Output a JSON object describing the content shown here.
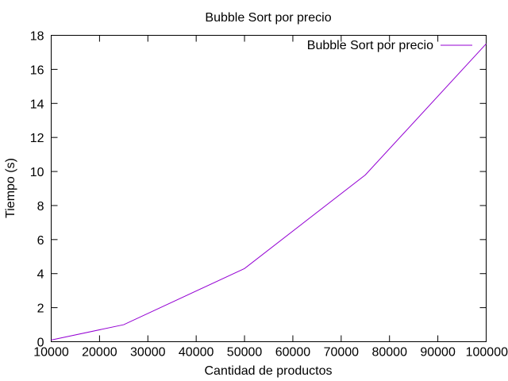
{
  "chart_data": {
    "type": "line",
    "title": "Bubble Sort por precio",
    "xlabel": "Cantidad de productos",
    "ylabel": "Tiempo (s)",
    "xlim": [
      10000,
      100000
    ],
    "ylim": [
      0,
      18
    ],
    "xticks": [
      10000,
      20000,
      30000,
      40000,
      50000,
      60000,
      70000,
      80000,
      90000,
      100000
    ],
    "yticks": [
      0,
      2,
      4,
      6,
      8,
      10,
      12,
      14,
      16,
      18
    ],
    "grid": false,
    "legend_position": "top-right",
    "series": [
      {
        "name": "Bubble Sort por precio",
        "color": "#9400d3",
        "x": [
          10000,
          25000,
          50000,
          75000,
          100000
        ],
        "y": [
          0.1,
          1.0,
          4.3,
          9.8,
          17.5
        ]
      }
    ]
  }
}
